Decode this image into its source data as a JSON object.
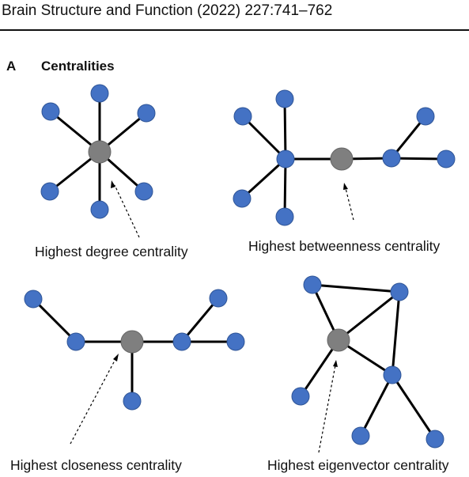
{
  "header": {
    "title": "Brain Structure and Function (2022) 227:741–762"
  },
  "figure": {
    "panel_label": "A",
    "panel_title": "Centralities",
    "colors": {
      "peripheral_node": "#4472c4",
      "central_node": "#7f7f7f",
      "edge": "#000000"
    },
    "graphs": [
      {
        "id": "degree",
        "caption": "Highest degree centrality"
      },
      {
        "id": "betweenness",
        "caption": "Highest betweenness centrality"
      },
      {
        "id": "closeness",
        "caption": "Highest closeness centrality"
      },
      {
        "id": "eigenvector",
        "caption": "Highest eigenvector centrality"
      }
    ]
  }
}
